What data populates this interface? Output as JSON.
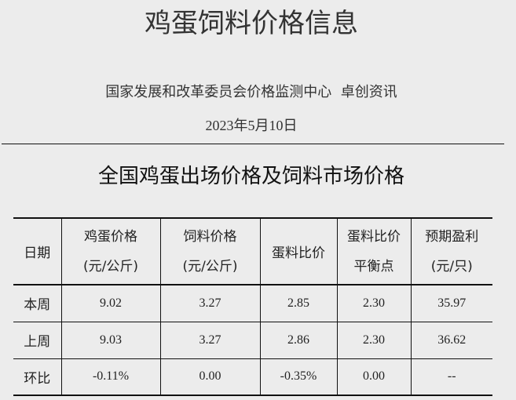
{
  "header": {
    "title": "鸡蛋饲料价格信息",
    "source": "国家发展和改革委员会价格监测中心  卓创资讯",
    "date": "2023年5月10日"
  },
  "section_title": "全国鸡蛋出场价格及饲料市场价格",
  "table": {
    "columns": [
      {
        "line1": "日期",
        "line2": ""
      },
      {
        "line1": "鸡蛋价格",
        "line2": "(元/公斤)"
      },
      {
        "line1": "饲料价格",
        "line2": "(元/公斤)"
      },
      {
        "line1": "蛋料比价",
        "line2": ""
      },
      {
        "line1": "蛋料比价",
        "line2": "平衡点"
      },
      {
        "line1": "预期盈利",
        "line2": "(元/只)"
      }
    ],
    "rows": [
      [
        "本周",
        "9.02",
        "3.27",
        "2.85",
        "2.30",
        "35.97"
      ],
      [
        "上周",
        "9.03",
        "3.27",
        "2.86",
        "2.30",
        "36.62"
      ],
      [
        "环比",
        "-0.11%",
        "0.00",
        "-0.35%",
        "0.00",
        "--"
      ]
    ]
  }
}
